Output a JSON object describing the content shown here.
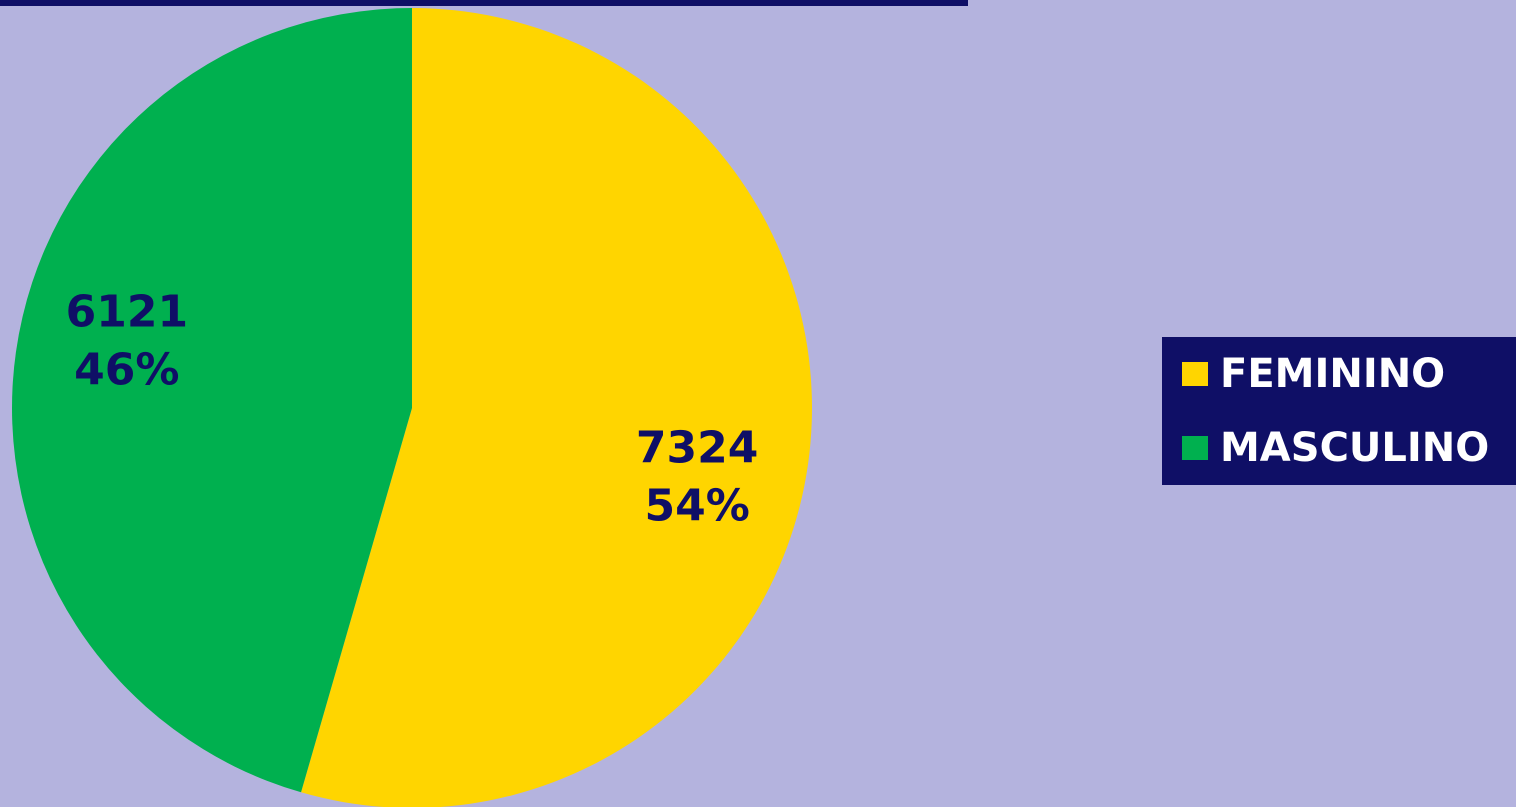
{
  "chart_data": {
    "type": "pie",
    "categories": [
      "FEMININO",
      "MASCULINO"
    ],
    "values": [
      7324,
      6121
    ],
    "value_labels": [
      "54%",
      "46%"
    ],
    "colors": [
      "#ffd500",
      "#00b04f"
    ],
    "legend": "right"
  }
}
